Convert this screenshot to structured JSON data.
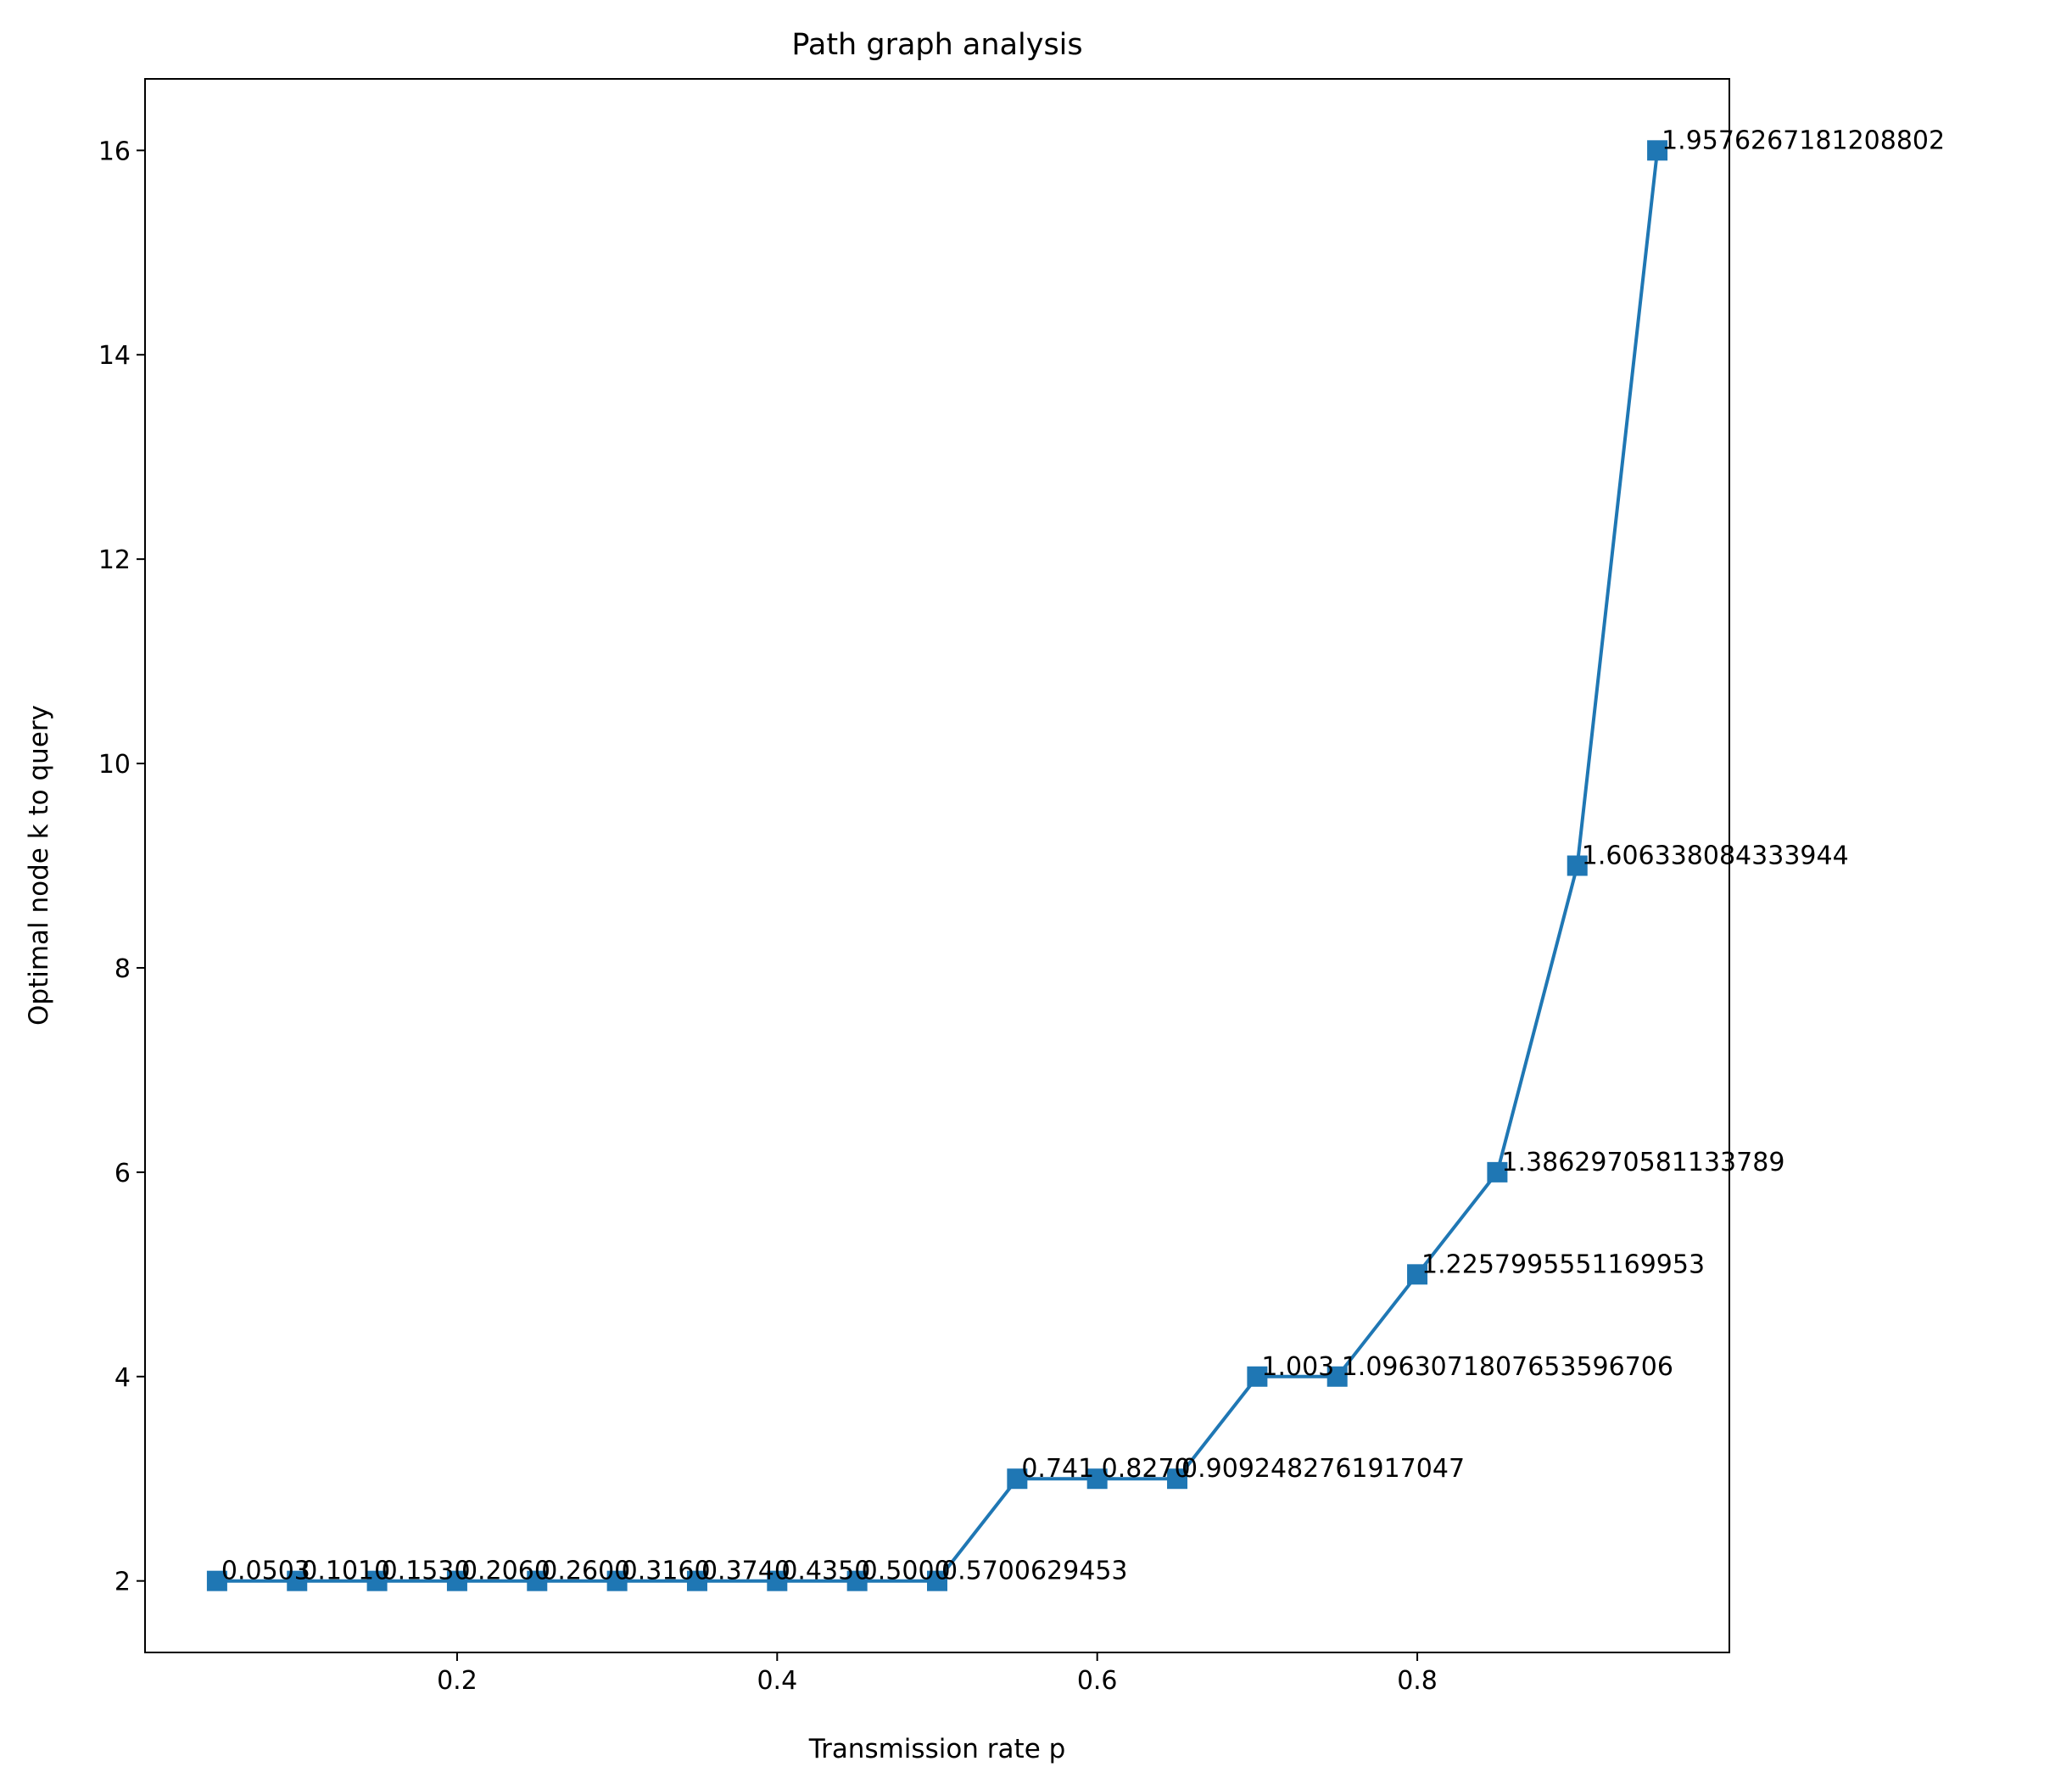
{
  "chart_data": {
    "type": "line",
    "title": "Path graph analysis",
    "xlabel": "Transmission rate p",
    "ylabel": "Optimal node k to query",
    "xlim": [
      0.005,
      0.995
    ],
    "ylim": [
      1.3,
      16.7
    ],
    "xticks": [
      0.2,
      0.4,
      0.6,
      0.8
    ],
    "xtick_labels": [
      "0.2",
      "0.4",
      "0.6",
      "0.8"
    ],
    "yticks": [
      2,
      4,
      6,
      8,
      10,
      12,
      14,
      16
    ],
    "ytick_labels": [
      "2",
      "4",
      "6",
      "8",
      "10",
      "12",
      "14",
      "16"
    ],
    "grid": false,
    "series": [
      {
        "color": "#1f77b4",
        "marker": "square",
        "x": [
          0.05,
          0.1,
          0.15,
          0.2,
          0.25,
          0.3,
          0.35,
          0.4,
          0.45,
          0.5,
          0.55,
          0.6,
          0.65,
          0.7,
          0.75,
          0.8,
          0.85,
          0.9,
          0.95
        ],
        "y": [
          2,
          2,
          2,
          2,
          2,
          2,
          2,
          2,
          2,
          2,
          3,
          3,
          3,
          4,
          4,
          5,
          6,
          9,
          16
        ],
        "labels": [
          "0.0503",
          "0.1010",
          "0.1530",
          "0.2060",
          "0.2600",
          "0.3160",
          "0.3740",
          "0.4350",
          "0.5000",
          "0.5700629453",
          "0.741",
          "0.8270",
          "0.9092482761917047",
          "1.003",
          "1.0963071807653596706",
          "1.2257995551169953",
          "1.3862970581133789",
          "1.606338084333944",
          "1.9576267181208802"
        ]
      }
    ]
  }
}
